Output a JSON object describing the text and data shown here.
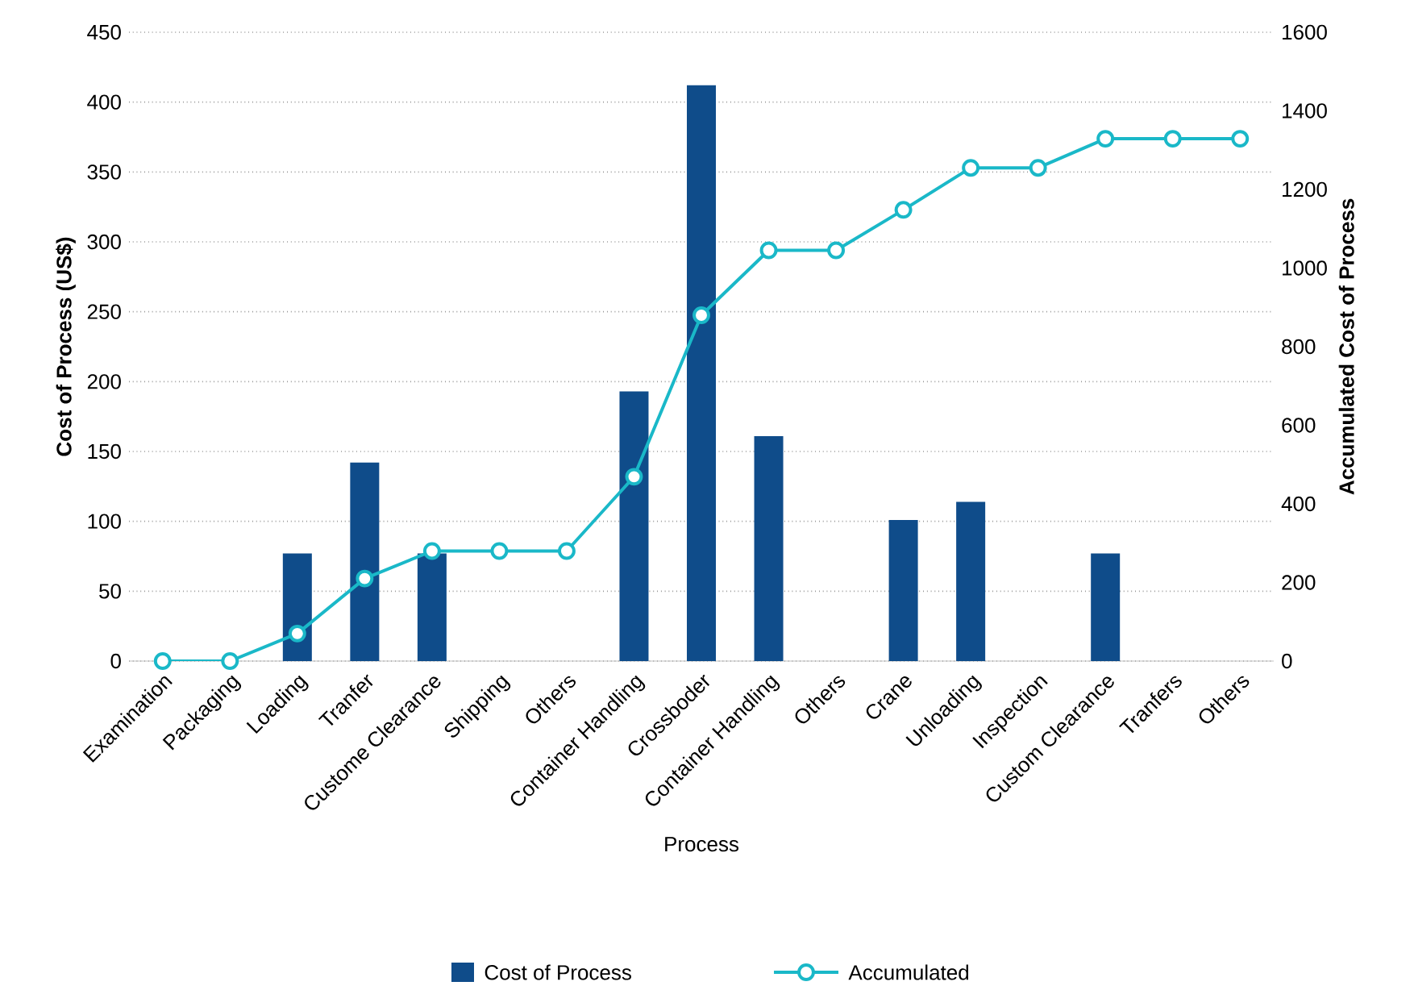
{
  "chart_data": {
    "type": "bar",
    "xlabel": "Process",
    "ylabel": "Cost of Process (US$)",
    "y2label": "Accumulated Cost of Process",
    "categories": [
      "Examination",
      "Packaging",
      "Loading",
      "Tranfer",
      "Custome Clearance",
      "Shipping",
      "Others",
      "Container Handling",
      "Crossboder",
      "Container Handling",
      "Others",
      "Crane",
      "Unloading",
      "Inspection",
      "Custom Clearance",
      "Tranfers",
      "Others"
    ],
    "series": [
      {
        "name": "Cost of Process",
        "color": "#0f4c8a",
        "values": [
          0,
          0,
          77,
          142,
          77,
          0,
          0,
          193,
          412,
          161,
          0,
          101,
          114,
          0,
          77,
          0,
          0
        ]
      },
      {
        "name": "Accumulated",
        "type": "line",
        "axis": "y2",
        "color": "#1ab8c8",
        "marker": "circle",
        "line_style": "solid",
        "values": [
          0,
          0,
          70,
          210,
          280,
          280,
          280,
          469,
          880,
          1045,
          1045,
          1148,
          1255,
          1255,
          1329,
          1329,
          1329
        ]
      }
    ],
    "ylim": [
      0,
      450
    ],
    "yticks": [
      0,
      50,
      100,
      150,
      200,
      250,
      300,
      350,
      400,
      450
    ],
    "y2lim": [
      0,
      1600
    ],
    "y2ticks": [
      0,
      200,
      400,
      600,
      800,
      1000,
      1200,
      1400,
      1600
    ],
    "grid": "y",
    "legend": "bottom"
  }
}
